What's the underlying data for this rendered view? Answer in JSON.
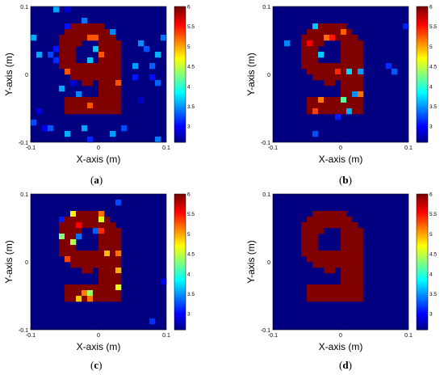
{
  "panels": [
    {
      "id": "a",
      "caption_open": "(",
      "caption_letter": "a",
      "caption_close": ")",
      "xlabel": "X-axis (m)",
      "ylabel": "Y-axis (m)",
      "xticks": [
        "-0.1",
        "0",
        "0.1"
      ],
      "yticks": [
        "0.1",
        "0",
        "-0.1"
      ],
      "cbticks": [
        "6",
        "5.5",
        "5",
        "4.5",
        "4",
        "3.5",
        "3"
      ]
    },
    {
      "id": "b",
      "caption_open": "(",
      "caption_letter": "b",
      "caption_close": ")",
      "xlabel": "X-axis (m)",
      "ylabel": "Y-axis (m)",
      "xticks": [
        "-0.1",
        "0",
        "0.1"
      ],
      "yticks": [
        "0.1",
        "0",
        "-0.1"
      ],
      "cbticks": [
        "6",
        "5.5",
        "5",
        "4.5",
        "4",
        "3.5",
        "3"
      ]
    },
    {
      "id": "c",
      "caption_open": "(",
      "caption_letter": "c",
      "caption_close": ")",
      "xlabel": "X-axis (m)",
      "ylabel": "Y-axis (m)",
      "xticks": [
        "-0.1",
        "0",
        "0.1"
      ],
      "yticks": [
        "0.1",
        "0",
        "-0.1"
      ],
      "cbticks": [
        "6",
        "5.5",
        "5",
        "4.5",
        "4",
        "3.5",
        "3"
      ]
    },
    {
      "id": "d",
      "caption_open": "(",
      "caption_letter": "d",
      "caption_close": ")",
      "xlabel": "X-axis (m)",
      "ylabel": "Y-axis (m)",
      "xticks": [
        "-0.1",
        "0",
        "0.1"
      ],
      "yticks": [
        "0.1",
        "0",
        "-0.1"
      ],
      "cbticks": [
        "6",
        "5.5",
        "5",
        "4.5",
        "4",
        "3.5",
        "3"
      ]
    }
  ],
  "chart_data": [
    {
      "panel": "a",
      "type": "heatmap",
      "xlim": [
        -0.1,
        0.1
      ],
      "ylim": [
        -0.1,
        0.1
      ],
      "clim": [
        2.6,
        6
      ],
      "colormap": "jet",
      "background_value": 2.6,
      "shape": "digit 9",
      "shape_value": 6,
      "noise": "scattered low-value speckle around the shape",
      "xlabel": "X-axis (m)",
      "ylabel": "Y-axis (m)"
    },
    {
      "panel": "b",
      "type": "heatmap",
      "xlim": [
        -0.1,
        0.1
      ],
      "ylim": [
        -0.1,
        0.1
      ],
      "clim": [
        2.6,
        6
      ],
      "colormap": "jet",
      "background_value": 2.6,
      "shape": "digit 9",
      "shape_value": 6,
      "noise": "mixed yellow/green/cyan cells inside the loop",
      "xlabel": "X-axis (m)",
      "ylabel": "Y-axis (m)"
    },
    {
      "panel": "c",
      "type": "heatmap",
      "xlim": [
        -0.1,
        0.1
      ],
      "ylim": [
        -0.1,
        0.1
      ],
      "clim": [
        2.6,
        6
      ],
      "colormap": "jet",
      "background_value": 2.6,
      "shape": "digit 9",
      "shape_value": 6,
      "noise": "mixed yellow/green cells at edges",
      "xlabel": "X-axis (m)",
      "ylabel": "Y-axis (m)"
    },
    {
      "panel": "d",
      "type": "heatmap",
      "xlim": [
        -0.1,
        0.1
      ],
      "ylim": [
        -0.1,
        0.1
      ],
      "clim": [
        2.6,
        6
      ],
      "colormap": "jet",
      "background_value": 2.6,
      "shape": "digit 9",
      "shape_value": 6,
      "noise": "none",
      "xlabel": "X-axis (m)",
      "ylabel": "Y-axis (m)"
    }
  ]
}
